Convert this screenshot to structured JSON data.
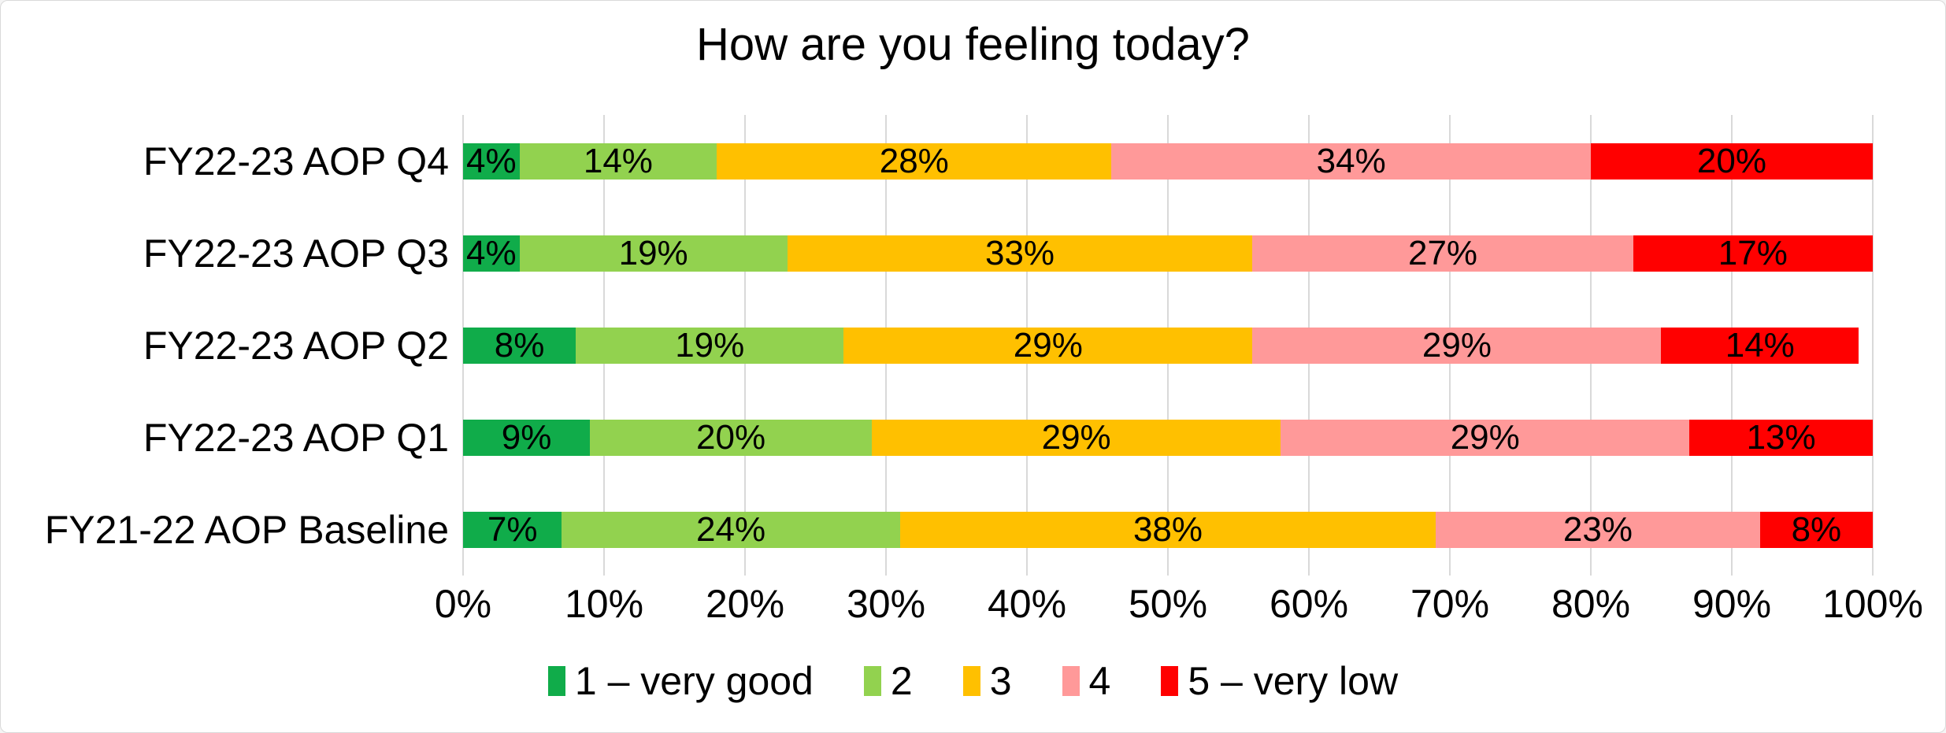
{
  "frame": {
    "background": "#ffffff",
    "border_color": "#d9d9d9"
  },
  "chart_data": {
    "type": "bar",
    "orientation": "horizontal",
    "stacked": true,
    "stacked_total": 100,
    "title": "How are you feeling today?",
    "categories": [
      "FY22-23 AOP Q4",
      "FY22-23 AOP Q3",
      "FY22-23 AOP Q2",
      "FY22-23 AOP Q1",
      "FY21-22 AOP Baseline"
    ],
    "series": [
      {
        "name": "1 – very good",
        "color": "#10ac4a",
        "values": [
          4,
          4,
          8,
          9,
          7
        ]
      },
      {
        "name": "2",
        "color": "#92d24f",
        "values": [
          14,
          19,
          19,
          20,
          24
        ]
      },
      {
        "name": "3",
        "color": "#ffc000",
        "values": [
          28,
          33,
          29,
          29,
          38
        ]
      },
      {
        "name": "4",
        "color": "#ff9999",
        "values": [
          34,
          27,
          29,
          29,
          23
        ]
      },
      {
        "name": "5 – very low",
        "color": "#ff0000",
        "values": [
          20,
          17,
          14,
          13,
          8
        ]
      }
    ],
    "data_label_suffix": "%",
    "x_axis": {
      "min": 0,
      "max": 100,
      "tick_step": 10,
      "tick_labels": [
        "0%",
        "10%",
        "20%",
        "30%",
        "40%",
        "50%",
        "60%",
        "70%",
        "80%",
        "90%",
        "100%"
      ]
    },
    "gridlines": {
      "vertical": true,
      "color": "#d9d9d9"
    },
    "legend": {
      "position": "bottom",
      "entries": [
        "1 – very good",
        "2",
        "3",
        "4",
        "5 – very low"
      ]
    }
  }
}
